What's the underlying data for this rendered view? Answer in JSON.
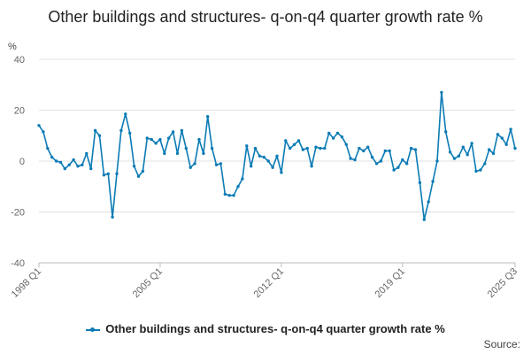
{
  "chart_data": {
    "type": "line",
    "title": "Other buildings and structures- q-on-q4 quarter growth rate %",
    "ylabel": "%",
    "xlabel": "",
    "ylim": [
      -40,
      40
    ],
    "y_ticks": [
      "40",
      "20",
      "0",
      "-20",
      "-40"
    ],
    "x_tick_labels": [
      "1998 Q1",
      "2005 Q1",
      "2012 Q1",
      "2019 Q1",
      "2025 Q3"
    ],
    "x_tick_indices": [
      0,
      28,
      56,
      84,
      110
    ],
    "grid": true,
    "legend_position": "bottom",
    "series": [
      {
        "name": "Other buildings and structures- q-on-q4 quarter growth rate %",
        "color": "#0b7bb5",
        "start": "1998 Q1",
        "values": [
          14,
          11.5,
          5,
          1.5,
          0,
          -0.5,
          -3,
          -1.5,
          0.5,
          -2,
          -1.5,
          3,
          -3,
          12,
          10,
          -5.5,
          -5,
          -22,
          -5,
          12,
          18.5,
          11,
          -2,
          -6,
          -4,
          9,
          8.5,
          7,
          8.5,
          3,
          9,
          11.5,
          3,
          12,
          5,
          -2.5,
          -1,
          8.5,
          3,
          17.5,
          5,
          -1.5,
          -1,
          -13,
          -13.5,
          -13.5,
          -10,
          -7,
          6,
          -2,
          5,
          2,
          1.5,
          0,
          -2.5,
          2,
          -4.5,
          8,
          5,
          6.5,
          8,
          4.5,
          5,
          -2,
          5.5,
          5,
          5,
          11,
          9,
          11,
          9.5,
          6.5,
          1,
          0.5,
          5,
          4,
          5.5,
          1.5,
          -1,
          0,
          4,
          4,
          -3.5,
          -2.5,
          0.5,
          -1,
          5,
          4.5,
          -8.5,
          -23,
          -16,
          -8,
          0,
          27,
          11.5,
          3.5,
          1,
          2,
          5.5,
          2.5,
          7,
          -4,
          -3.5,
          -1,
          4.5,
          3,
          10.5,
          9,
          6.5,
          12.5,
          5
        ]
      }
    ]
  },
  "legend": {
    "label": "Other buildings and structures- q-on-q4 quarter growth rate %"
  },
  "source": {
    "label": "Source:"
  }
}
